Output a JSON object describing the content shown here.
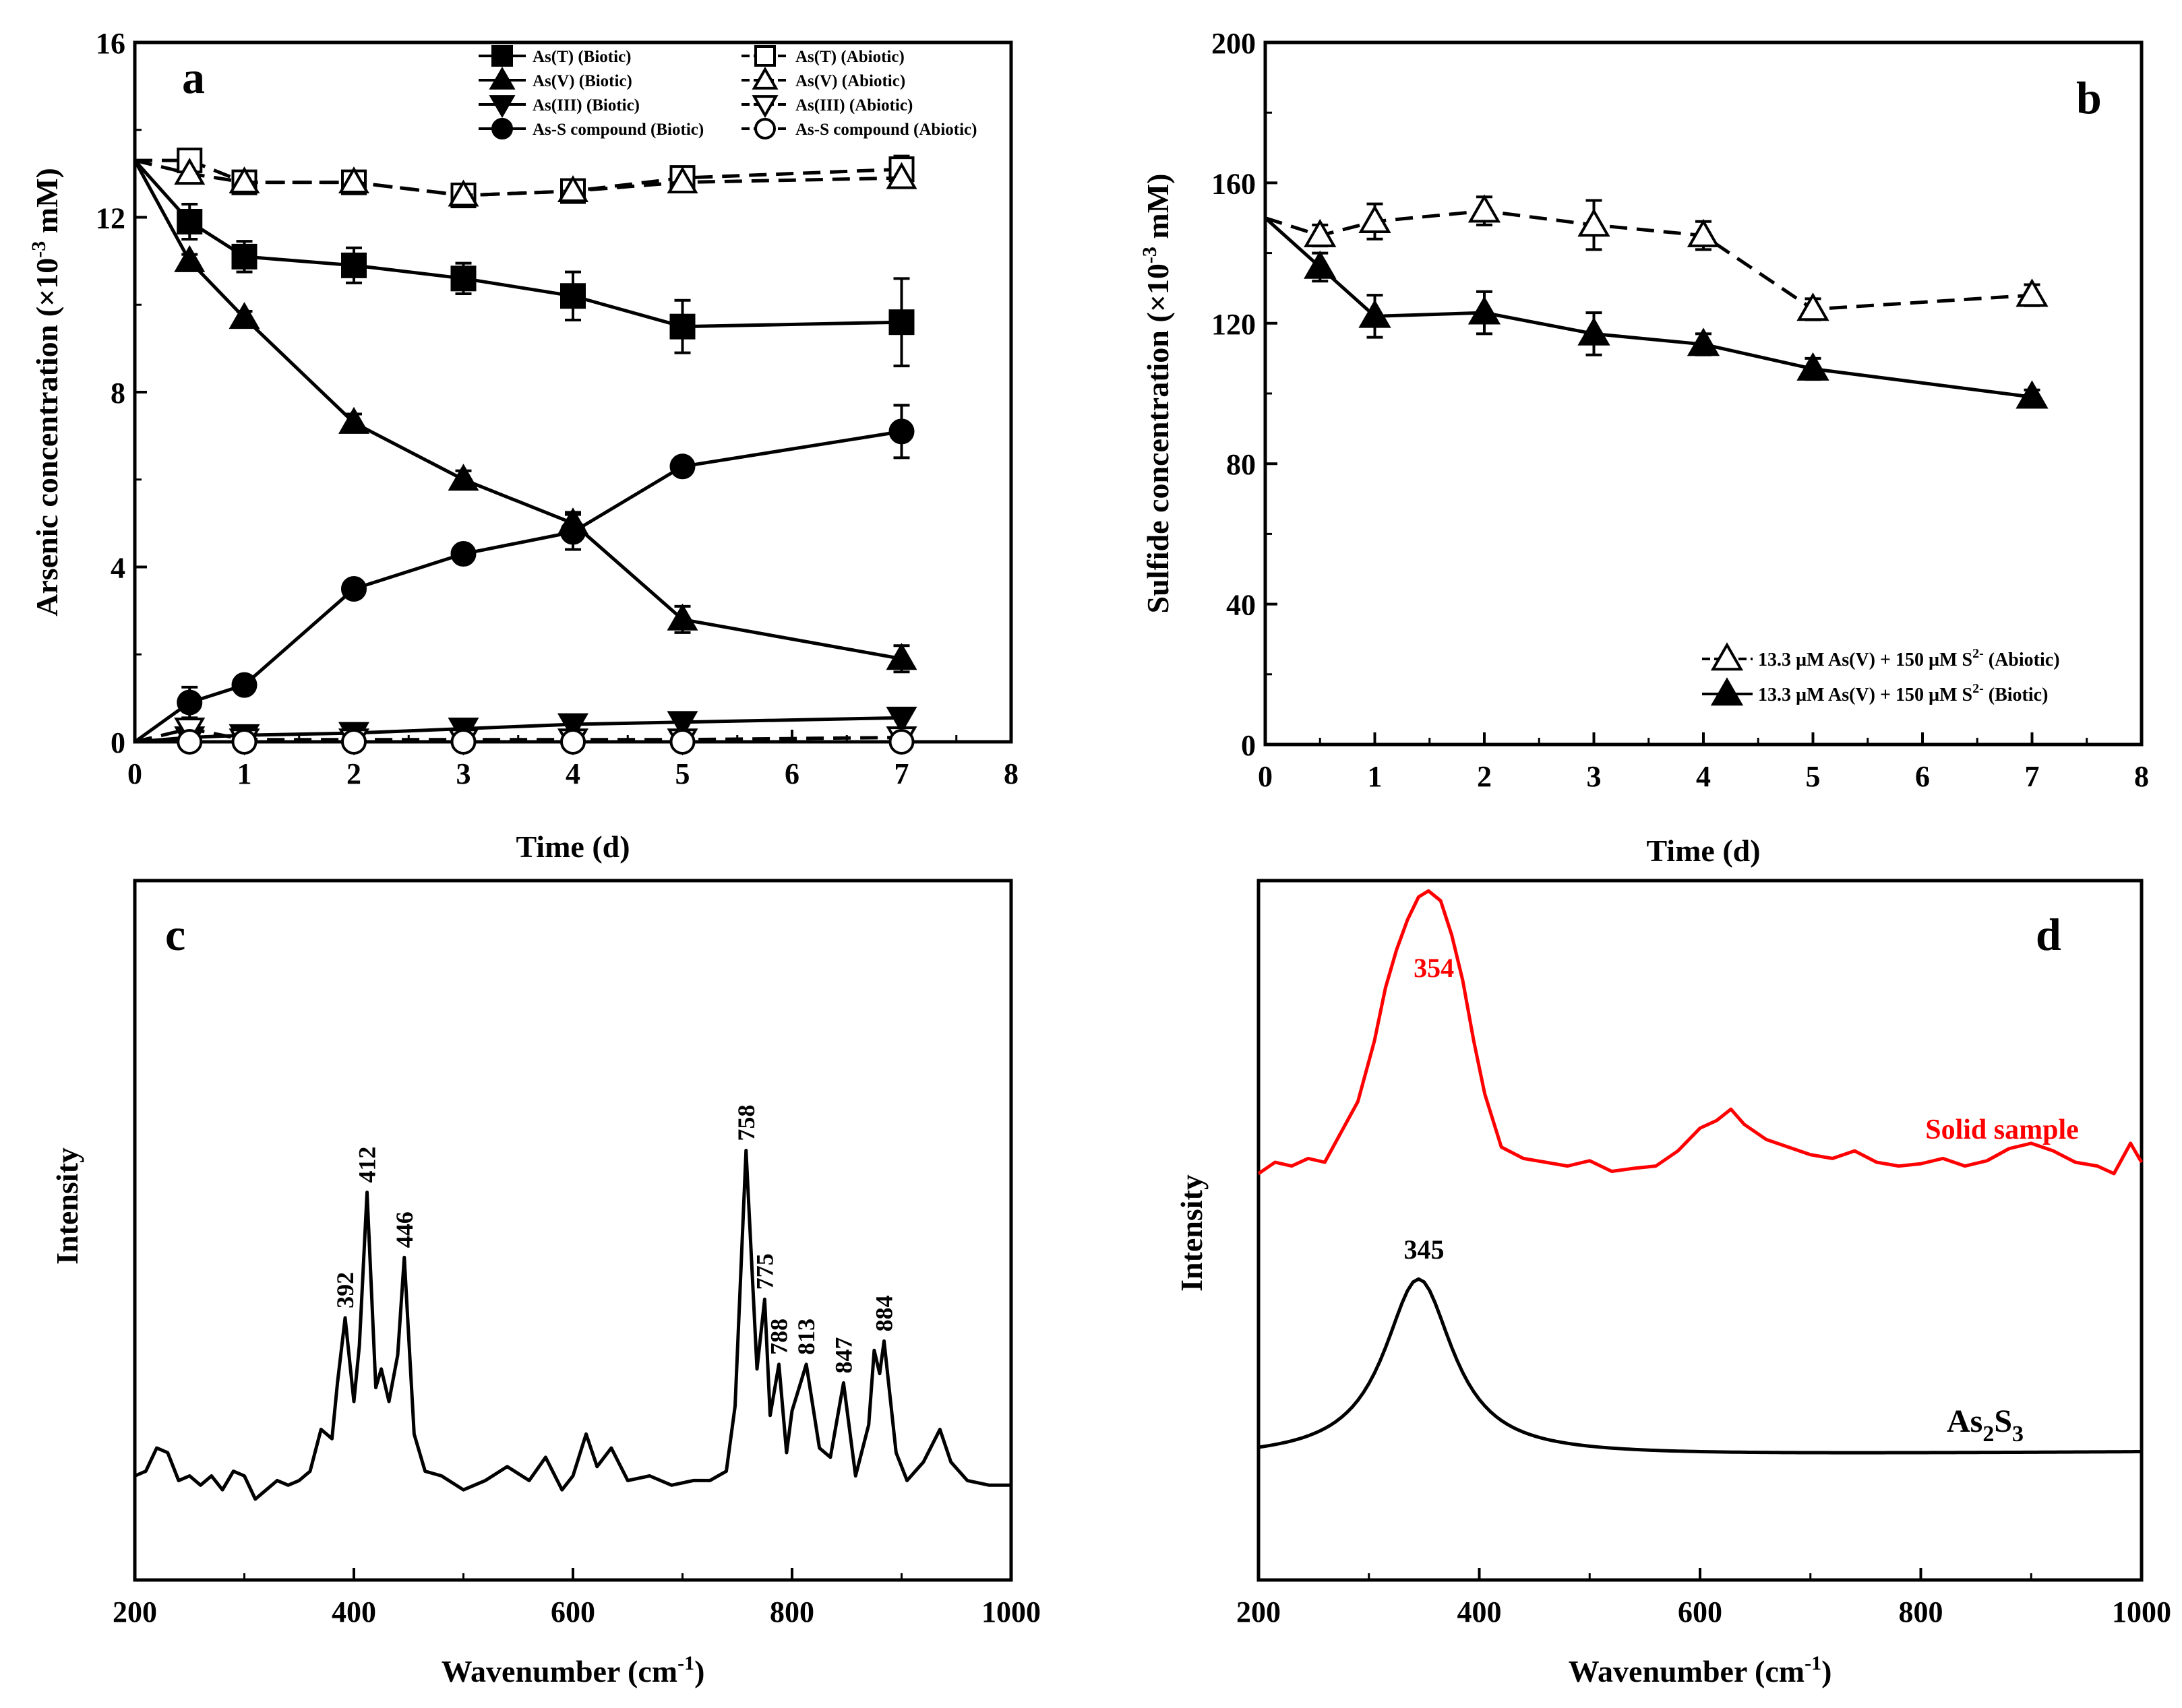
{
  "chart_data": [
    {
      "id": "a",
      "type": "line",
      "panel_label": "a",
      "xlabel": "Time (d)",
      "ylabel_main": "Arsenic concentration (×10",
      "ylabel_sup": "-3",
      "ylabel_tail": " mM)",
      "xlim": [
        0,
        8
      ],
      "ylim": [
        0,
        16
      ],
      "xticks": [
        0,
        1,
        2,
        3,
        4,
        5,
        6,
        7,
        8
      ],
      "yticks": [
        0,
        4,
        8,
        12,
        16
      ],
      "series": [
        {
          "name": "As(T)  (Biotic)",
          "marker": "square",
          "filled": true,
          "dash": false,
          "x": [
            0,
            0.5,
            1,
            2,
            3,
            4,
            5,
            7
          ],
          "y": [
            13.3,
            11.9,
            11.1,
            10.9,
            10.6,
            10.2,
            9.5,
            9.6
          ],
          "err": [
            0,
            0.4,
            0.35,
            0.4,
            0.35,
            0.55,
            0.6,
            1.0
          ]
        },
        {
          "name": "As(V)  (Biotic)",
          "marker": "triangle",
          "filled": true,
          "dash": false,
          "x": [
            0,
            0.5,
            1,
            2,
            3,
            4,
            5,
            7
          ],
          "y": [
            13.3,
            11.0,
            9.7,
            7.3,
            6.0,
            5.0,
            2.8,
            1.9
          ],
          "err": [
            0,
            0.15,
            0.15,
            0.2,
            0.2,
            0.25,
            0.3,
            0.3
          ]
        },
        {
          "name": "As(III) (Biotic)",
          "marker": "triangle-down",
          "filled": true,
          "dash": false,
          "x": [
            0,
            0.5,
            1,
            2,
            3,
            4,
            5,
            7
          ],
          "y": [
            0,
            0.1,
            0.15,
            0.2,
            0.3,
            0.4,
            0.45,
            0.55
          ],
          "err": [
            0,
            0,
            0,
            0,
            0,
            0,
            0,
            0
          ]
        },
        {
          "name": "As-S compound (Biotic)",
          "marker": "circle",
          "filled": true,
          "dash": false,
          "x": [
            0,
            0.5,
            1,
            2,
            3,
            4,
            5,
            7
          ],
          "y": [
            0,
            0.9,
            1.3,
            3.5,
            4.3,
            4.8,
            6.3,
            7.1
          ],
          "err": [
            0,
            0.35,
            0.15,
            0.2,
            0.2,
            0.4,
            0.2,
            0.6
          ]
        },
        {
          "name": "As(T) (Abiotic)",
          "marker": "square",
          "filled": false,
          "dash": true,
          "x": [
            0,
            0.5,
            1,
            2,
            3,
            4,
            5,
            7
          ],
          "y": [
            13.3,
            13.3,
            12.8,
            12.8,
            12.5,
            12.6,
            12.9,
            13.1
          ],
          "err": [
            0,
            0.25,
            0.2,
            0.2,
            0.2,
            0.2,
            0.25,
            0.3
          ]
        },
        {
          "name": "As(V) (Abiotic)",
          "marker": "triangle",
          "filled": false,
          "dash": true,
          "x": [
            0,
            0.5,
            1,
            2,
            3,
            4,
            5,
            7
          ],
          "y": [
            13.3,
            13.0,
            12.8,
            12.8,
            12.5,
            12.6,
            12.8,
            12.9
          ],
          "err": [
            0,
            0,
            0,
            0,
            0,
            0,
            0,
            0
          ]
        },
        {
          "name": "As(III) (Abiotic)",
          "marker": "triangle-down",
          "filled": false,
          "dash": true,
          "x": [
            0,
            0.5,
            1,
            2,
            3,
            4,
            5,
            7
          ],
          "y": [
            0,
            0.3,
            0.05,
            0.05,
            0.05,
            0.05,
            0.05,
            0.1
          ],
          "err": [
            0,
            0,
            0,
            0,
            0,
            0,
            0,
            0
          ]
        },
        {
          "name": "As-S compound (Abiotic)",
          "marker": "circle",
          "filled": false,
          "dash": true,
          "x": [
            0,
            0.5,
            1,
            2,
            3,
            4,
            5,
            7
          ],
          "y": [
            0,
            0,
            0,
            0,
            0,
            0,
            0,
            0
          ],
          "err": [
            0,
            0,
            0,
            0,
            0,
            0,
            0,
            0
          ]
        }
      ]
    },
    {
      "id": "b",
      "type": "line",
      "panel_label": "b",
      "xlabel": "Time (d)",
      "ylabel_main": "Sulfide concentration (×10",
      "ylabel_sup": "-3",
      "ylabel_tail": " mM)",
      "xlim": [
        0,
        8
      ],
      "ylim": [
        0,
        200
      ],
      "xticks": [
        0,
        1,
        2,
        3,
        4,
        5,
        6,
        7,
        8
      ],
      "yticks": [
        0,
        40,
        80,
        120,
        160,
        200
      ],
      "series": [
        {
          "name": "13.3 µM As(V) + 150 µM S",
          "sup": "2-",
          "tail": " (Abiotic)",
          "marker": "triangle",
          "filled": false,
          "dash": true,
          "x": [
            0,
            0.5,
            1,
            2,
            3,
            4,
            5,
            7
          ],
          "y": [
            150,
            145,
            149,
            152,
            148,
            145,
            124,
            128
          ],
          "err": [
            0,
            3,
            5,
            4,
            7,
            4,
            3,
            3
          ]
        },
        {
          "name": "13.3 µM As(V) + 150 µM S",
          "sup": "2-",
          "tail": " (Biotic)",
          "marker": "triangle",
          "filled": true,
          "dash": false,
          "x": [
            0,
            0.5,
            1,
            2,
            3,
            4,
            5,
            7
          ],
          "y": [
            150,
            136,
            122,
            123,
            117,
            114,
            107,
            99
          ],
          "err": [
            0,
            4,
            6,
            6,
            6,
            3,
            3,
            2
          ]
        }
      ]
    },
    {
      "id": "c",
      "type": "line",
      "panel_label": "c",
      "xlabel_main": "Wavenumber (cm",
      "xlabel_sup": "-1",
      "xlabel_tail": ")",
      "ylabel": "Intensity",
      "xlim": [
        200,
        1000
      ],
      "xticks": [
        200,
        400,
        600,
        800,
        1000
      ],
      "spectrum_x": [
        200,
        210,
        220,
        230,
        240,
        250,
        260,
        270,
        280,
        290,
        300,
        310,
        320,
        330,
        340,
        350,
        360,
        370,
        380,
        385,
        392,
        400,
        405,
        412,
        420,
        425,
        432,
        440,
        446,
        455,
        465,
        480,
        500,
        520,
        540,
        560,
        575,
        590,
        600,
        612,
        622,
        635,
        650,
        670,
        690,
        710,
        725,
        740,
        748,
        758,
        768,
        775,
        780,
        788,
        795,
        800,
        813,
        825,
        835,
        847,
        858,
        870,
        875,
        880,
        884,
        895,
        905,
        920,
        935,
        945,
        960,
        980,
        1000
      ],
      "spectrum_y": [
        0.05,
        0.06,
        0.11,
        0.1,
        0.04,
        0.05,
        0.03,
        0.05,
        0.02,
        0.06,
        0.05,
        0.0,
        0.02,
        0.04,
        0.03,
        0.04,
        0.06,
        0.15,
        0.13,
        0.25,
        0.39,
        0.21,
        0.33,
        0.66,
        0.24,
        0.28,
        0.21,
        0.31,
        0.52,
        0.14,
        0.06,
        0.05,
        0.02,
        0.04,
        0.07,
        0.04,
        0.09,
        0.02,
        0.05,
        0.14,
        0.07,
        0.11,
        0.04,
        0.05,
        0.03,
        0.04,
        0.04,
        0.06,
        0.2,
        0.75,
        0.28,
        0.43,
        0.18,
        0.29,
        0.1,
        0.19,
        0.29,
        0.11,
        0.09,
        0.25,
        0.05,
        0.16,
        0.32,
        0.27,
        0.34,
        0.1,
        0.04,
        0.08,
        0.15,
        0.08,
        0.04,
        0.03,
        0.03
      ],
      "peak_labels": [
        {
          "x": 392,
          "label": "392",
          "y": 0.39
        },
        {
          "x": 412,
          "label": "412",
          "y": 0.66
        },
        {
          "x": 446,
          "label": "446",
          "y": 0.52
        },
        {
          "x": 758,
          "label": "758",
          "y": 0.75
        },
        {
          "x": 775,
          "label": "775",
          "y": 0.43
        },
        {
          "x": 788,
          "label": "788",
          "y": 0.29
        },
        {
          "x": 813,
          "label": "813",
          "y": 0.29
        },
        {
          "x": 847,
          "label": "847",
          "y": 0.25
        },
        {
          "x": 884,
          "label": "884",
          "y": 0.34
        }
      ]
    },
    {
      "id": "d",
      "type": "line",
      "panel_label": "d",
      "xlabel_main": "Wavenumber (cm",
      "xlabel_sup": "-1",
      "xlabel_tail": ")",
      "ylabel": "Intensity",
      "xlim": [
        200,
        1000
      ],
      "xticks": [
        200,
        400,
        600,
        800,
        1000
      ],
      "series": [
        {
          "name": "Solid sample",
          "color": "#ff0000",
          "peak": 354,
          "peak_label": "354",
          "x": [
            200,
            215,
            230,
            245,
            260,
            275,
            290,
            305,
            315,
            325,
            335,
            345,
            354,
            365,
            375,
            385,
            395,
            405,
            420,
            440,
            460,
            480,
            500,
            520,
            540,
            560,
            580,
            600,
            615,
            628,
            640,
            660,
            680,
            700,
            720,
            740,
            760,
            780,
            800,
            820,
            840,
            860,
            880,
            900,
            920,
            940,
            960,
            975,
            990,
            1000
          ],
          "y": [
            0.545,
            0.56,
            0.555,
            0.565,
            0.56,
            0.6,
            0.64,
            0.72,
            0.79,
            0.84,
            0.88,
            0.91,
            0.918,
            0.905,
            0.86,
            0.8,
            0.72,
            0.65,
            0.58,
            0.565,
            0.56,
            0.555,
            0.562,
            0.548,
            0.552,
            0.555,
            0.575,
            0.605,
            0.615,
            0.63,
            0.61,
            0.59,
            0.58,
            0.57,
            0.565,
            0.575,
            0.56,
            0.555,
            0.558,
            0.565,
            0.555,
            0.562,
            0.578,
            0.585,
            0.575,
            0.56,
            0.555,
            0.545,
            0.585,
            0.56
          ]
        },
        {
          "name": "As2S3",
          "name_main": "As",
          "name_sub1": "2",
          "name_mid": "S",
          "name_sub2": "3",
          "color": "#000000",
          "peak": 345,
          "peak_label": "345",
          "x": [],
          "y": []
        }
      ]
    }
  ],
  "colors": {
    "axis": "#000000",
    "red": "#ff0000"
  }
}
